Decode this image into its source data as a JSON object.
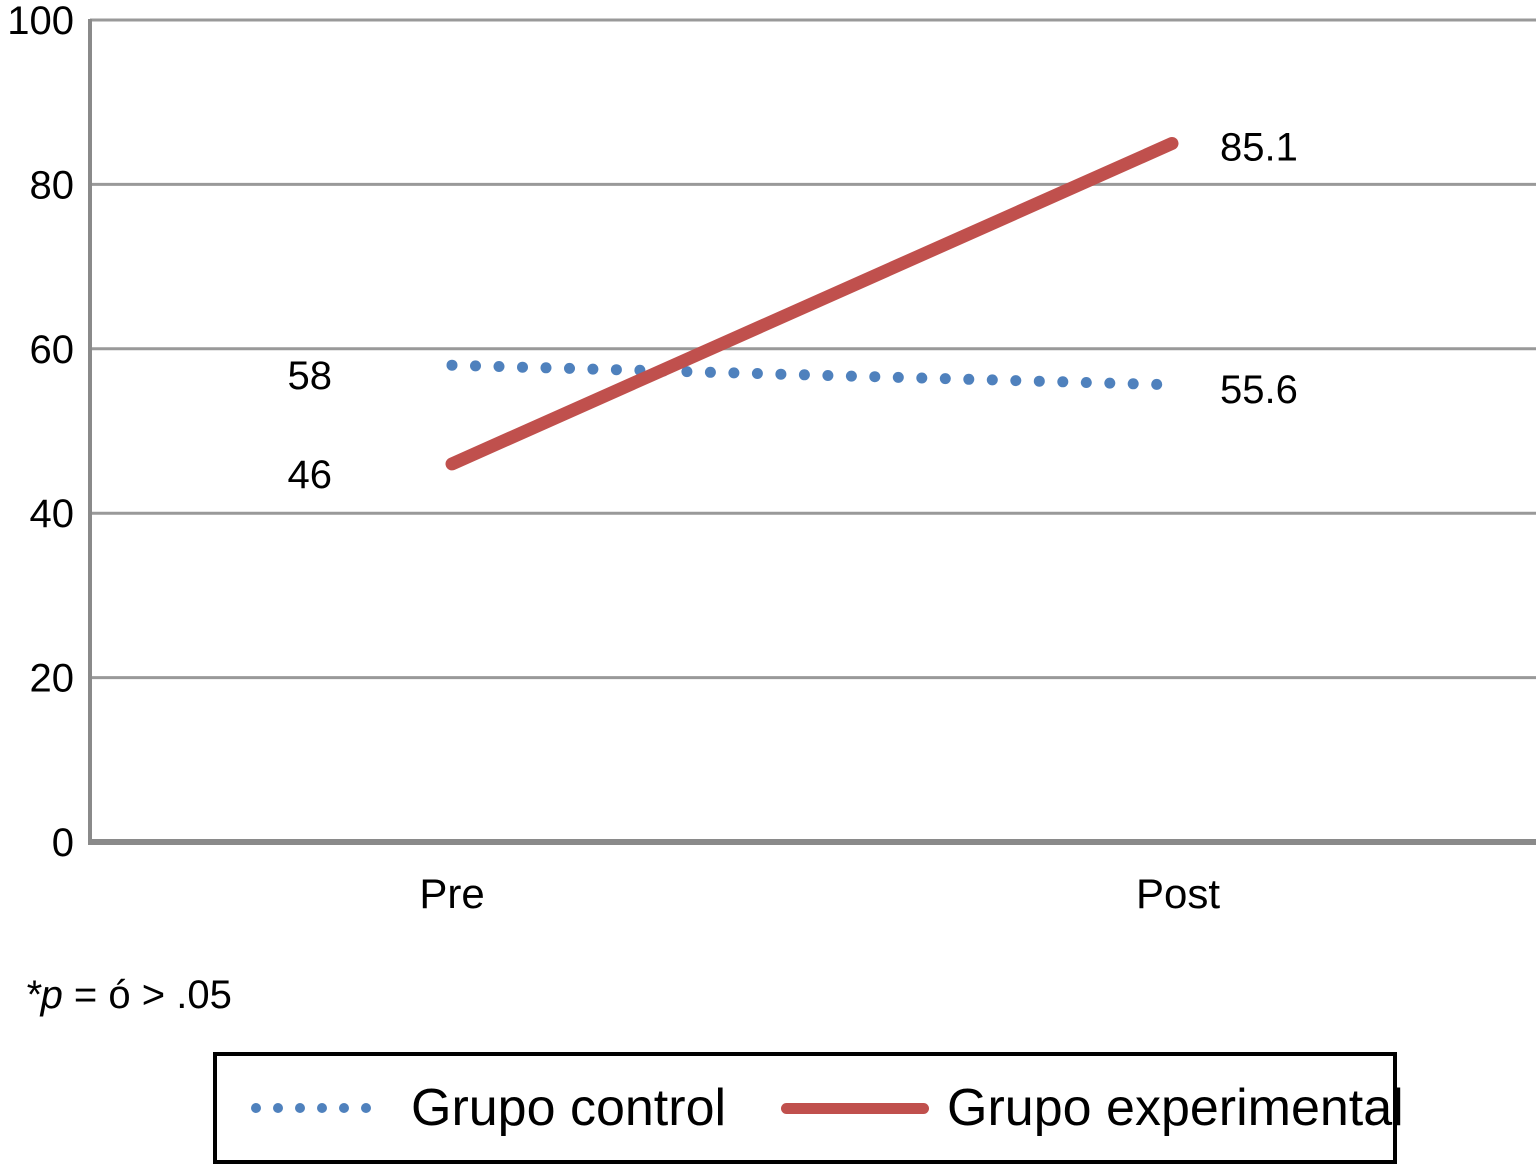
{
  "chart_data": {
    "type": "line",
    "categories": [
      "Pre",
      "Post"
    ],
    "series": [
      {
        "name": "Grupo control",
        "values": [
          58,
          55.6
        ],
        "data_labels": [
          "58",
          "55.6"
        ],
        "color": "#4F81BD",
        "line_style": "dotted"
      },
      {
        "name": "Grupo experimental",
        "values": [
          46,
          85.1
        ],
        "data_labels": [
          "46",
          "85.1"
        ],
        "color": "#C0504D",
        "line_style": "solid"
      }
    ],
    "ylim": [
      0,
      100
    ],
    "yticks": [
      0,
      20,
      40,
      60,
      80,
      100
    ],
    "grid": true,
    "legend_position": "bottom",
    "gridline_color": "#999999",
    "axis_color": "#8A8A8A",
    "text_color": "#000000"
  },
  "footnote": {
    "italic_part": "*p",
    "rest": " = ó > .05"
  }
}
